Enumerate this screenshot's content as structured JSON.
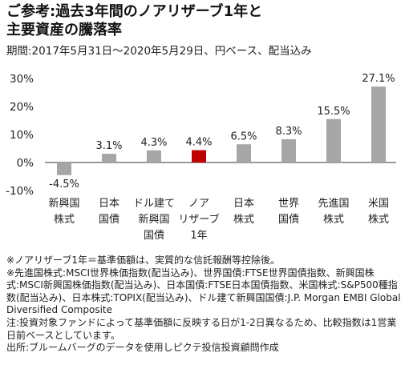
{
  "header": {
    "title_line1": "ご参考:過去3年間のノアリザーブ1年と",
    "title_line2": "主要資産の騰落率",
    "period": "期間:2017年5月31日～2020年5月29日、円ベース、配当込み"
  },
  "chart_data": {
    "type": "bar",
    "categories": [
      [
        "新興国",
        "株式"
      ],
      [
        "日本",
        "国債"
      ],
      [
        "ドル建て",
        "新興国",
        "国債"
      ],
      [
        "ノア",
        "リザーブ",
        "1年"
      ],
      [
        "日本",
        "株式"
      ],
      [
        "世界",
        "国債"
      ],
      [
        "先進国",
        "株式"
      ],
      [
        "米国",
        "株式"
      ]
    ],
    "values": [
      -4.5,
      3.1,
      4.3,
      4.4,
      6.5,
      8.3,
      15.5,
      27.1
    ],
    "value_labels": [
      "-4.5%",
      "3.1%",
      "4.3%",
      "4.4%",
      "6.5%",
      "8.3%",
      "15.5%",
      "27.1%"
    ],
    "highlight_index": 3,
    "colors": {
      "default": "#a6a6a6",
      "highlight": "#c00000"
    },
    "ylim": [
      -10,
      30
    ],
    "yticks": [
      -10,
      0,
      10,
      20,
      30
    ],
    "ytick_labels": [
      "-10%",
      "0%",
      "10%",
      "20%",
      "30%"
    ],
    "grid": false,
    "title": "",
    "xlabel": "",
    "ylabel": ""
  },
  "notes": [
    "※ノアリザーブ1年＝基準価額は、実質的な信託報酬等控除後。",
    "※先進国株式:MSCI世界株価指数(配当込み)、世界国債:FTSE世界国債指数、新興国株式:MSCI新興国株価指数(配当込み)、日本国債:FTSE日本国債指数、米国株式:S&P500種指数(配当込み)、日本株式:TOPIX(配当込み)、ドル建て新興国国債:J.P. Morgan EMBI Global Diversified Composite",
    "注:投資対象ファンドによって基準価額に反映する日が1-2日異なるため、比較指数は1営業日前ベースとしています。",
    "出所:ブルームバーグのデータを使用しピクテ投信投資顧問作成"
  ]
}
